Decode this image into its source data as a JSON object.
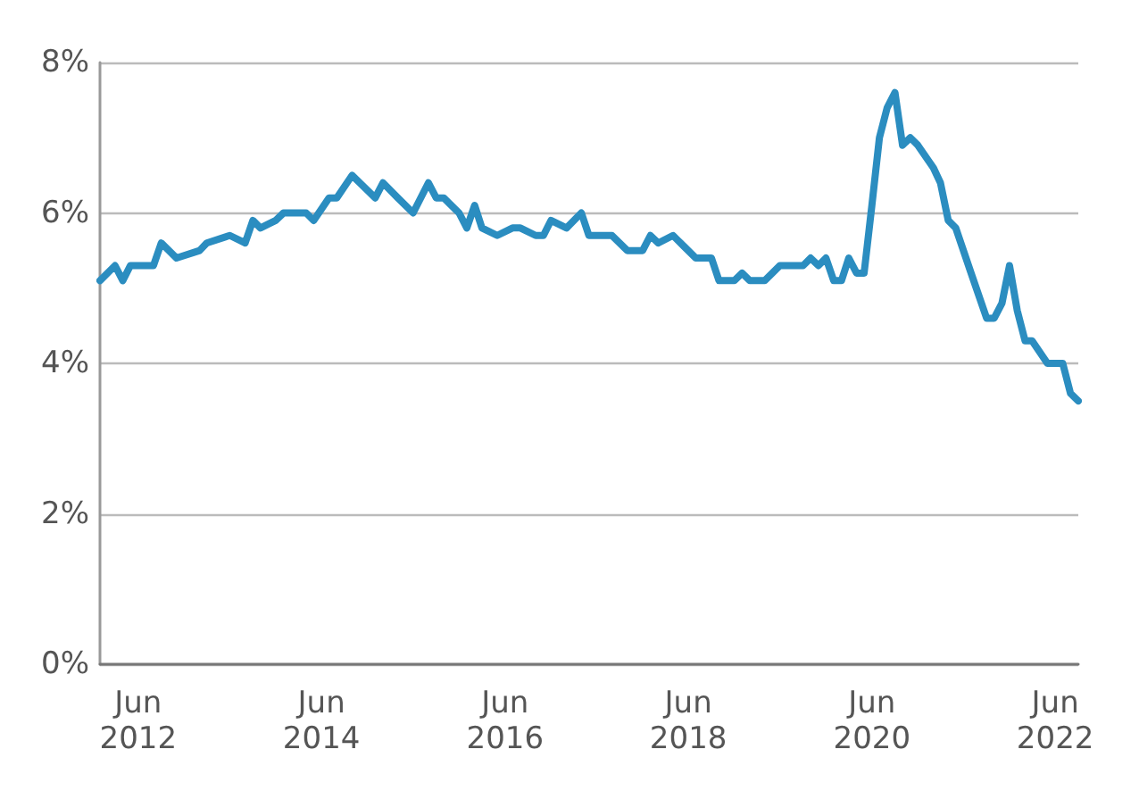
{
  "chart_data": {
    "type": "line",
    "color": "#2b8dc0",
    "x": [
      "2012-01",
      "2012-03",
      "2012-04",
      "2012-05",
      "2012-08",
      "2012-09",
      "2012-11",
      "2013-02",
      "2013-03",
      "2013-06",
      "2013-08",
      "2013-09",
      "2013-10",
      "2013-12",
      "2014-01",
      "2014-04",
      "2014-05",
      "2014-07",
      "2014-08",
      "2014-10",
      "2015-01",
      "2015-02",
      "2015-04",
      "2015-06",
      "2015-08",
      "2015-09",
      "2015-10",
      "2015-12",
      "2016-01",
      "2016-02",
      "2016-03",
      "2016-05",
      "2016-07",
      "2016-08",
      "2016-10",
      "2016-11",
      "2016-12",
      "2017-02",
      "2017-04",
      "2017-05",
      "2017-08",
      "2017-10",
      "2017-12",
      "2018-01",
      "2018-02",
      "2018-04",
      "2018-05",
      "2018-07",
      "2018-09",
      "2018-10",
      "2018-12",
      "2019-01",
      "2019-02",
      "2019-03",
      "2019-04",
      "2019-06",
      "2019-09",
      "2019-10",
      "2019-11",
      "2019-12",
      "2020-01",
      "2020-02",
      "2020-03",
      "2020-04",
      "2020-05",
      "2020-06",
      "2020-07",
      "2020-08",
      "2020-09",
      "2020-10",
      "2020-11",
      "2020-12",
      "2021-02",
      "2021-03",
      "2021-04",
      "2021-05",
      "2021-07",
      "2021-09",
      "2021-10",
      "2021-11",
      "2021-12",
      "2022-01",
      "2022-02",
      "2022-03",
      "2022-05",
      "2022-07",
      "2022-08",
      "2022-09"
    ],
    "values": [
      5.1,
      5.3,
      5.1,
      5.3,
      5.3,
      5.6,
      5.4,
      5.5,
      5.6,
      5.7,
      5.6,
      5.9,
      5.8,
      5.9,
      6.0,
      6.0,
      5.9,
      6.2,
      6.2,
      6.5,
      6.2,
      6.4,
      6.2,
      6.0,
      6.4,
      6.2,
      6.2,
      6.0,
      5.8,
      6.1,
      5.8,
      5.7,
      5.8,
      5.8,
      5.7,
      5.7,
      5.9,
      5.8,
      6.0,
      5.7,
      5.7,
      5.5,
      5.5,
      5.7,
      5.6,
      5.7,
      5.6,
      5.4,
      5.4,
      5.1,
      5.1,
      5.2,
      5.1,
      5.1,
      5.1,
      5.3,
      5.3,
      5.4,
      5.3,
      5.4,
      5.1,
      5.1,
      5.4,
      5.2,
      5.2,
      6.1,
      7.0,
      7.4,
      7.6,
      6.9,
      7.0,
      6.9,
      6.6,
      6.4,
      5.9,
      5.8,
      5.2,
      4.6,
      4.6,
      4.8,
      5.3,
      4.7,
      4.3,
      4.3,
      4.0,
      4.0,
      3.6,
      3.5
    ],
    "xlim": [
      "2012-01",
      "2022-09"
    ],
    "xticks": [
      {
        "value": "2012-06",
        "label": "Jun\n2012"
      },
      {
        "value": "2014-06",
        "label": "Jun\n2014"
      },
      {
        "value": "2016-06",
        "label": "Jun\n2016"
      },
      {
        "value": "2018-06",
        "label": "Jun\n2018"
      },
      {
        "value": "2020-06",
        "label": "Jun\n2020"
      },
      {
        "value": "2022-06",
        "label": "Jun\n2022"
      }
    ],
    "ylim": [
      0,
      8
    ],
    "yticks": [
      {
        "value": 0,
        "label": "0%"
      },
      {
        "value": 2,
        "label": "2%"
      },
      {
        "value": 4,
        "label": "4%"
      },
      {
        "value": 6,
        "label": "6%"
      },
      {
        "value": 8,
        "label": "8%"
      }
    ],
    "grid": "y",
    "marker": "none",
    "line_style": "solid"
  }
}
